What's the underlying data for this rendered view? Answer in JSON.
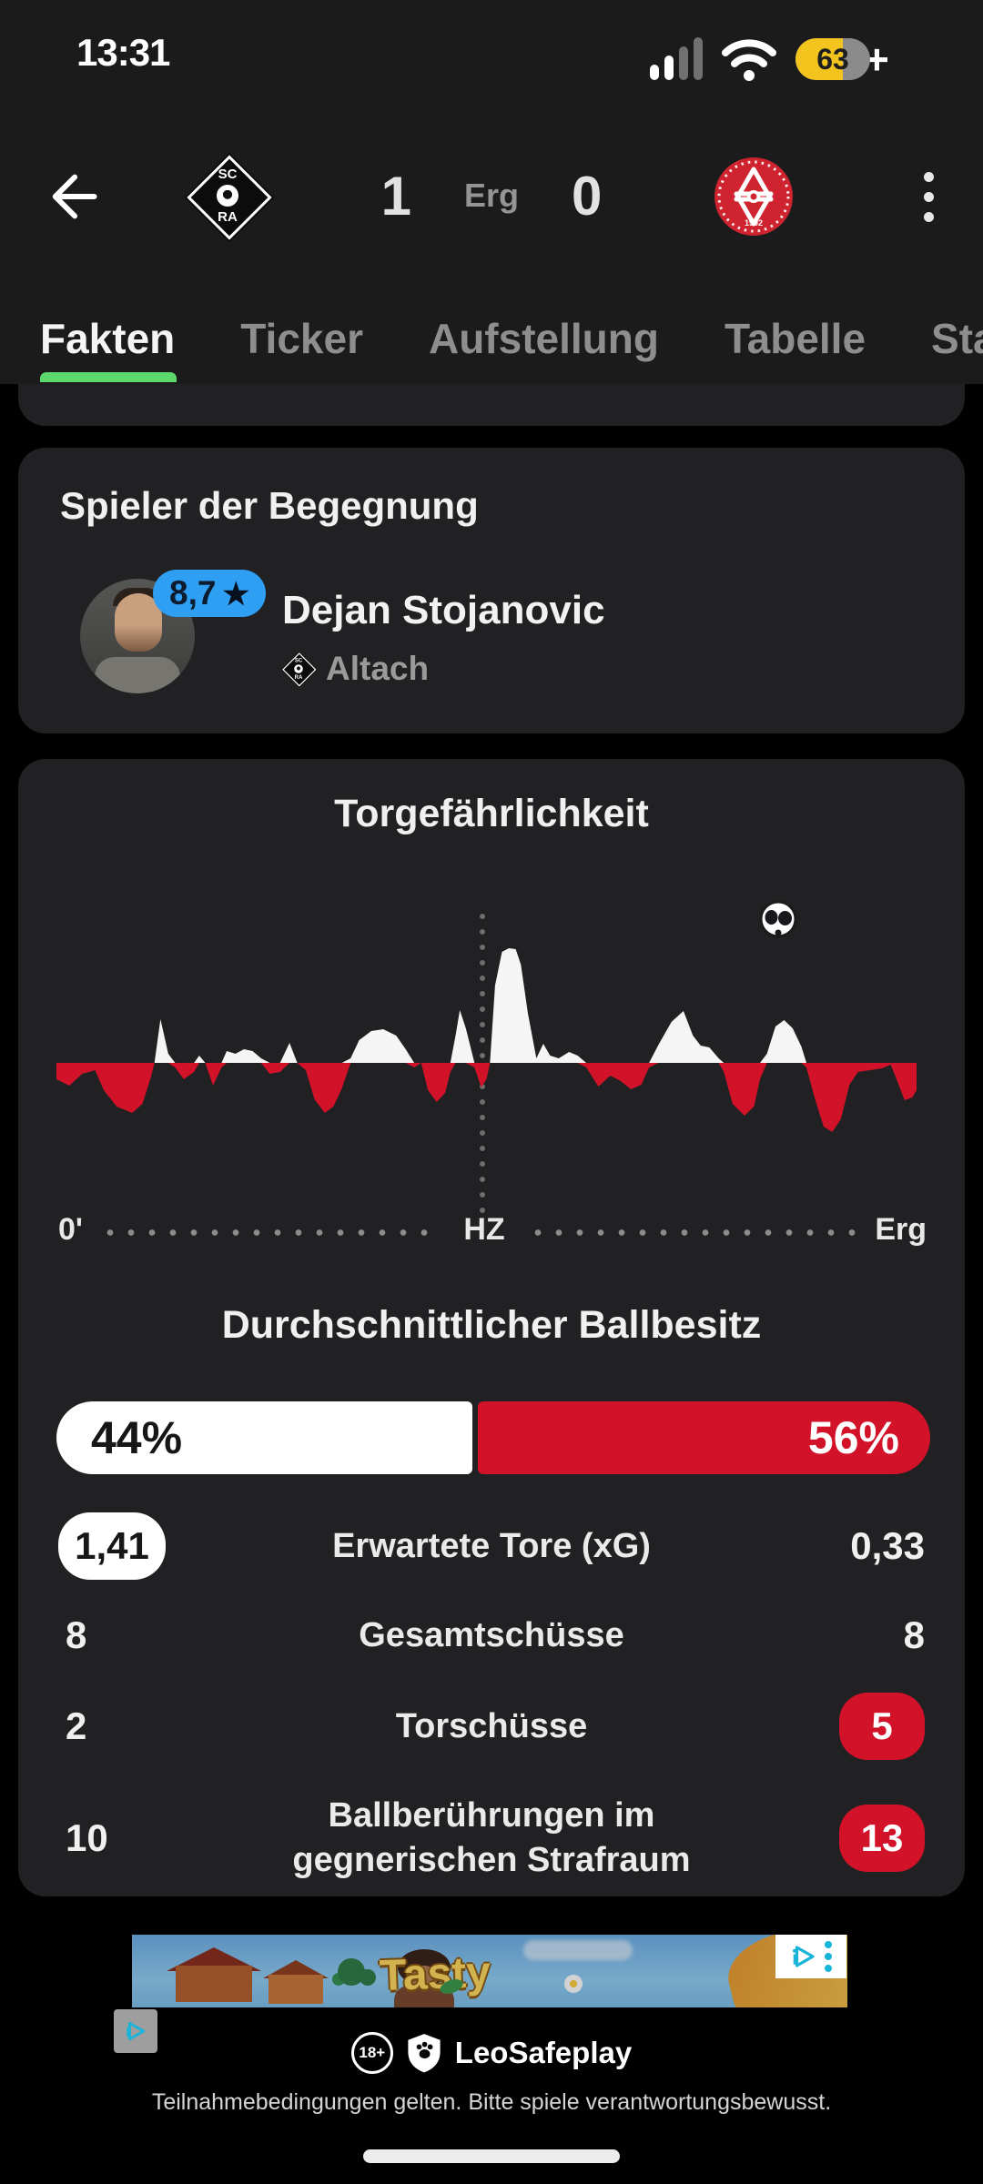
{
  "status_bar": {
    "time": "13:31",
    "battery_level": "63",
    "battery_plus": "+"
  },
  "header": {
    "home_score": "1",
    "result_label": "Erg",
    "away_score": "0"
  },
  "team_logos": {
    "home": {
      "top": "SC",
      "bottom": "RA"
    },
    "away": {
      "year": "1902"
    }
  },
  "tabs": {
    "items": [
      {
        "label": "Fakten"
      },
      {
        "label": "Ticker"
      },
      {
        "label": "Aufstellung"
      },
      {
        "label": "Tabelle"
      },
      {
        "label": "Sta"
      }
    ],
    "active_index": 0
  },
  "player_of_match": {
    "section_title": "Spieler der Begegnung",
    "rating": "8,7",
    "rating_star": "★",
    "player_name": "Dejan Stojanovic",
    "team_name": "Altach"
  },
  "momentum": {
    "title": "Torgefährlichkeit",
    "timeline_start": "0'",
    "timeline_half": "HZ",
    "timeline_end": "Erg"
  },
  "possession": {
    "title": "Durchschnittlicher Ballbesitz",
    "home_value": "44%",
    "away_value": "56%"
  },
  "stats": {
    "rows": [
      {
        "home": "1,41",
        "label": "Erwartete Tore (xG)",
        "away": "0,33"
      },
      {
        "home": "8",
        "label": "Gesamtschüsse",
        "away": "8"
      },
      {
        "home": "2",
        "label": "Torschüsse",
        "away": "5"
      },
      {
        "home": "10",
        "label": "Ballberührungen im gegnerischen Strafraum",
        "away": "13"
      }
    ]
  },
  "ad": {
    "brand": "Tasty",
    "age_rating": "18+",
    "sponsor": "LeoSafeplay",
    "disclaimer": "Teilnahmebedingungen gelten. Bitte spiele verantwortungsbewusst."
  },
  "colors": {
    "accent_green": "#5cd86c",
    "accent_blue": "#2f9ff4",
    "accent_red": "#d21228",
    "battery_yellow": "#f3c41e",
    "adchoices_cyan": "#19b5d8",
    "card_background": "#212123",
    "chrome_background": "#1b1b1c"
  },
  "chart_data": {
    "type": "area",
    "title": "Torgefährlichkeit",
    "x_axis": {
      "start_label": "0'",
      "half_label": "HZ",
      "end_label": "Erg",
      "unit": "percent of match",
      "range_pct": [
        0,
        100
      ]
    },
    "y_axis": {
      "description": "Momentum: positive = home/Altach (white), negative = away/GAK (red)",
      "range": [
        -126,
        126
      ]
    },
    "grid": false,
    "legend": "none",
    "events": [
      {
        "type": "goal",
        "x_pct": 83.9,
        "team": "home"
      }
    ],
    "series": [
      {
        "name": "Momentum",
        "points": [
          [
            0,
            -18
          ],
          [
            1.5,
            -25
          ],
          [
            3,
            -12
          ],
          [
            4.5,
            -8
          ],
          [
            5.5,
            -30
          ],
          [
            7,
            -48
          ],
          [
            8.8,
            -55
          ],
          [
            10,
            -45
          ],
          [
            11,
            -15
          ],
          [
            11.4,
            0
          ],
          [
            12.1,
            48
          ],
          [
            13,
            10
          ],
          [
            13.8,
            -5
          ],
          [
            14.8,
            -18
          ],
          [
            16,
            -10
          ],
          [
            16.6,
            8
          ],
          [
            17.3,
            0
          ],
          [
            18.2,
            -25
          ],
          [
            19.2,
            -5
          ],
          [
            19.8,
            13
          ],
          [
            20.8,
            10
          ],
          [
            21.8,
            15
          ],
          [
            22.8,
            13
          ],
          [
            23.8,
            5
          ],
          [
            24.8,
            -12
          ],
          [
            26,
            -10
          ],
          [
            27.1,
            22
          ],
          [
            28,
            0
          ],
          [
            29,
            -8
          ],
          [
            30,
            -40
          ],
          [
            31.2,
            -55
          ],
          [
            32.2,
            -48
          ],
          [
            33.2,
            -28
          ],
          [
            34.2,
            5
          ],
          [
            35.2,
            25
          ],
          [
            36.6,
            35
          ],
          [
            38,
            37
          ],
          [
            39.5,
            30
          ],
          [
            40.6,
            15
          ],
          [
            41.6,
            -5
          ],
          [
            42.4,
            0
          ],
          [
            43.2,
            -30
          ],
          [
            44.2,
            -43
          ],
          [
            45.2,
            -33
          ],
          [
            45.8,
            -10
          ],
          [
            46.4,
            30
          ],
          [
            46.9,
            58
          ],
          [
            47.6,
            38
          ],
          [
            48.6,
            -5
          ],
          [
            49.4,
            -27
          ],
          [
            50,
            -18
          ],
          [
            50.4,
            0
          ],
          [
            51,
            85
          ],
          [
            51.8,
            122
          ],
          [
            52.6,
            126
          ],
          [
            53.4,
            125
          ],
          [
            54,
            108
          ],
          [
            54.8,
            55
          ],
          [
            55.8,
            5
          ],
          [
            56.6,
            21
          ],
          [
            57.4,
            8
          ],
          [
            58.4,
            5
          ],
          [
            59.6,
            12
          ],
          [
            60.6,
            8
          ],
          [
            61.6,
            -5
          ],
          [
            63,
            -26
          ],
          [
            64.4,
            -14
          ],
          [
            65.6,
            -20
          ],
          [
            66.8,
            -29
          ],
          [
            68,
            -24
          ],
          [
            68.9,
            -5
          ],
          [
            70,
            20
          ],
          [
            71.5,
            45
          ],
          [
            72.9,
            57
          ],
          [
            74,
            30
          ],
          [
            74.9,
            19
          ],
          [
            75.9,
            17
          ],
          [
            77,
            5
          ],
          [
            77.6,
            -10
          ],
          [
            78.6,
            -45
          ],
          [
            80,
            -58
          ],
          [
            81.1,
            -48
          ],
          [
            81.8,
            -18
          ],
          [
            82.6,
            10
          ],
          [
            83.6,
            40
          ],
          [
            84.6,
            47
          ],
          [
            85.6,
            38
          ],
          [
            86.6,
            18
          ],
          [
            87.2,
            -5
          ],
          [
            88.2,
            -40
          ],
          [
            89.2,
            -70
          ],
          [
            90.2,
            -76
          ],
          [
            91.2,
            -62
          ],
          [
            92.2,
            -24
          ],
          [
            93.2,
            -10
          ],
          [
            94.6,
            -8
          ],
          [
            96,
            -6
          ],
          [
            97,
            -2
          ],
          [
            97.6,
            -16
          ],
          [
            98.6,
            -41
          ],
          [
            99.5,
            -38
          ],
          [
            100,
            -30
          ]
        ]
      }
    ]
  }
}
